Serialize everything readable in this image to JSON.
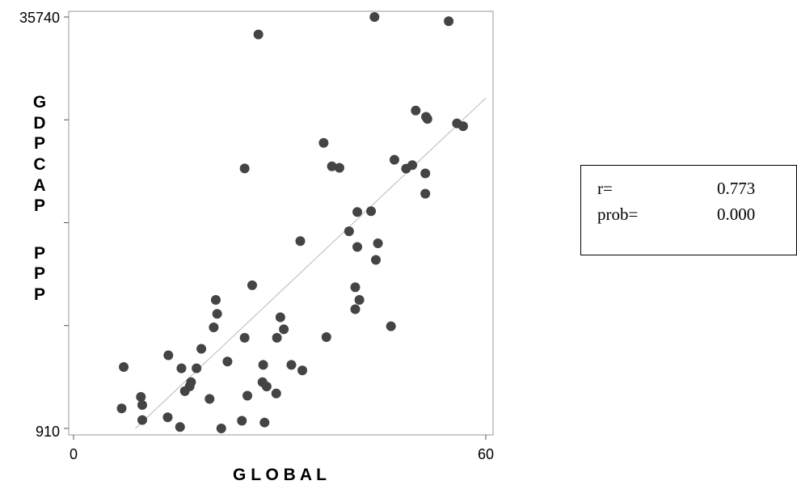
{
  "chart_data": {
    "type": "scatter",
    "xlabel": "G L O B A L",
    "ylabel": "GDPCAP PPP",
    "ylabel_lines": [
      "G",
      "D",
      "P",
      "C",
      "A",
      "P",
      "",
      "P",
      "P",
      "P"
    ],
    "xlim": [
      0,
      60
    ],
    "ylim": [
      910,
      35740
    ],
    "x_tick_labels": [
      "0",
      "60"
    ],
    "y_tick_labels": [
      "910",
      "35740"
    ],
    "minor_y_ticks": [
      9617.5,
      18325,
      27032.5
    ],
    "grid": false,
    "point_color": "#444444",
    "fit_line": {
      "x": [
        9,
        60
      ],
      "y": [
        910,
        28870
      ],
      "color": "#c8c8c8"
    },
    "points": [
      {
        "x": 7.0,
        "y": 2600
      },
      {
        "x": 7.3,
        "y": 6110
      },
      {
        "x": 9.8,
        "y": 3580
      },
      {
        "x": 10.0,
        "y": 2890
      },
      {
        "x": 10.0,
        "y": 1620
      },
      {
        "x": 13.7,
        "y": 1850
      },
      {
        "x": 15.5,
        "y": 1030
      },
      {
        "x": 13.8,
        "y": 7100
      },
      {
        "x": 15.7,
        "y": 6000
      },
      {
        "x": 16.2,
        "y": 4070
      },
      {
        "x": 16.9,
        "y": 4470
      },
      {
        "x": 17.1,
        "y": 4830
      },
      {
        "x": 17.9,
        "y": 6000
      },
      {
        "x": 18.6,
        "y": 7650
      },
      {
        "x": 19.8,
        "y": 3410
      },
      {
        "x": 20.4,
        "y": 9460
      },
      {
        "x": 20.9,
        "y": 10610
      },
      {
        "x": 20.7,
        "y": 11790
      },
      {
        "x": 21.5,
        "y": 910
      },
      {
        "x": 22.4,
        "y": 6570
      },
      {
        "x": 24.5,
        "y": 1560
      },
      {
        "x": 24.9,
        "y": 8580
      },
      {
        "x": 25.3,
        "y": 3680
      },
      {
        "x": 26.0,
        "y": 13030
      },
      {
        "x": 24.9,
        "y": 22920
      },
      {
        "x": 26.9,
        "y": 34260
      },
      {
        "x": 27.6,
        "y": 6290
      },
      {
        "x": 27.8,
        "y": 1410
      },
      {
        "x": 28.1,
        "y": 4460
      },
      {
        "x": 27.5,
        "y": 4830
      },
      {
        "x": 29.5,
        "y": 3870
      },
      {
        "x": 29.6,
        "y": 8580
      },
      {
        "x": 30.1,
        "y": 10320
      },
      {
        "x": 30.6,
        "y": 9300
      },
      {
        "x": 31.7,
        "y": 6290
      },
      {
        "x": 33.3,
        "y": 5820
      },
      {
        "x": 33.0,
        "y": 16770
      },
      {
        "x": 36.8,
        "y": 8640
      },
      {
        "x": 36.4,
        "y": 25080
      },
      {
        "x": 37.6,
        "y": 23100
      },
      {
        "x": 38.7,
        "y": 22970
      },
      {
        "x": 40.1,
        "y": 17600
      },
      {
        "x": 41.0,
        "y": 11000
      },
      {
        "x": 41.3,
        "y": 16270
      },
      {
        "x": 41.6,
        "y": 11790
      },
      {
        "x": 41.0,
        "y": 12860
      },
      {
        "x": 41.3,
        "y": 19230
      },
      {
        "x": 43.3,
        "y": 19300
      },
      {
        "x": 44.0,
        "y": 15180
      },
      {
        "x": 44.3,
        "y": 16580
      },
      {
        "x": 43.8,
        "y": 35740
      },
      {
        "x": 46.2,
        "y": 9560
      },
      {
        "x": 46.7,
        "y": 23650
      },
      {
        "x": 48.4,
        "y": 22900
      },
      {
        "x": 49.3,
        "y": 23200
      },
      {
        "x": 49.8,
        "y": 27820
      },
      {
        "x": 51.3,
        "y": 27290
      },
      {
        "x": 51.2,
        "y": 22500
      },
      {
        "x": 51.2,
        "y": 20780
      },
      {
        "x": 51.5,
        "y": 27110
      },
      {
        "x": 54.6,
        "y": 35380
      },
      {
        "x": 55.8,
        "y": 26730
      },
      {
        "x": 56.7,
        "y": 26490
      }
    ]
  },
  "stats_box": {
    "r_label": "r=",
    "r_value": "0.773",
    "prob_label": "prob=",
    "prob_value": "0.000"
  }
}
